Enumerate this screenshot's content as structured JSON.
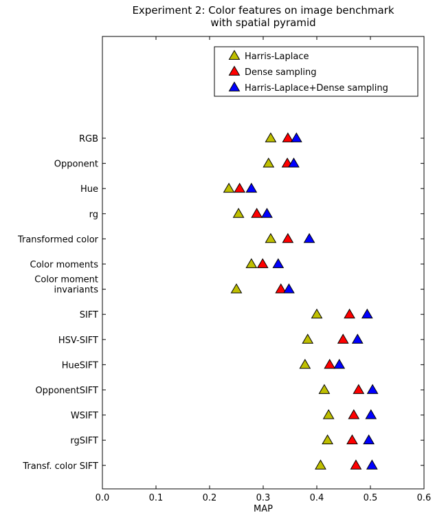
{
  "chart_data": {
    "type": "scatter",
    "title": [
      "Experiment 2: Color features on image benchmark",
      "with spatial pyramid"
    ],
    "xlabel": "MAP",
    "ylabel": "",
    "xlim": [
      0.0,
      0.6
    ],
    "xticks": [
      "0.0",
      "0.1",
      "0.2",
      "0.3",
      "0.4",
      "0.5",
      "0.6"
    ],
    "grid": false,
    "legend_position": "top-right",
    "categories": [
      [
        "RGB"
      ],
      [
        "Opponent"
      ],
      [
        "Hue"
      ],
      [
        "rg"
      ],
      [
        "Transformed color"
      ],
      [
        "Color moments"
      ],
      [
        "Color moment",
        "invariants"
      ],
      [
        "SIFT"
      ],
      [
        "HSV-SIFT"
      ],
      [
        "HueSIFT"
      ],
      [
        "OpponentSIFT"
      ],
      [
        "WSIFT"
      ],
      [
        "rgSIFT"
      ],
      [
        "Transf. color SIFT"
      ]
    ],
    "series": [
      {
        "name": "Harris-Laplace",
        "color": "#bfbf00",
        "marker": "triangle-up",
        "values": [
          0.314,
          0.31,
          0.236,
          0.254,
          0.314,
          0.278,
          0.25,
          0.4,
          0.383,
          0.378,
          0.414,
          0.422,
          0.42,
          0.407
        ]
      },
      {
        "name": "Dense sampling",
        "color": "#ff0000",
        "marker": "triangle-up",
        "values": [
          0.346,
          0.345,
          0.256,
          0.288,
          0.346,
          0.299,
          0.333,
          0.461,
          0.449,
          0.424,
          0.478,
          0.469,
          0.466,
          0.473
        ]
      },
      {
        "name": "Harris-Laplace+Dense sampling",
        "color": "#0000ff",
        "marker": "triangle-up",
        "values": [
          0.362,
          0.357,
          0.278,
          0.307,
          0.386,
          0.328,
          0.348,
          0.494,
          0.476,
          0.442,
          0.504,
          0.501,
          0.497,
          0.503
        ]
      }
    ]
  }
}
